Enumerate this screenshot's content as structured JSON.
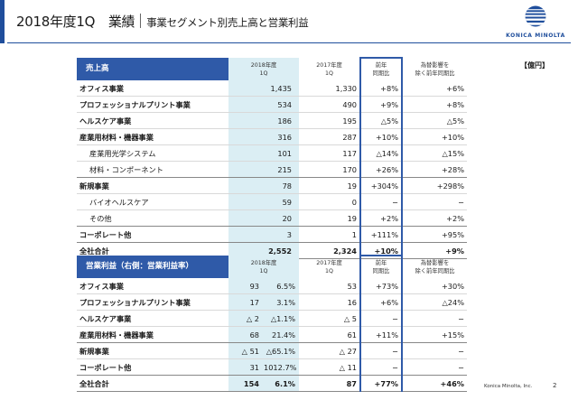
{
  "header": {
    "title_main": "2018年度1Q　業績",
    "title_sub": "事業セグメント別売上高と営業利益",
    "logo_text": "KONICA MINOLTA",
    "unit": "【億円】"
  },
  "footer": {
    "company": "Konica Minolta, Inc.",
    "page": "2"
  },
  "colors": {
    "accent": "#1f4e9c",
    "header_cell": "#2f5aa8",
    "fy2018_column": "#dbeef4"
  },
  "sales_table": {
    "label": "売上高",
    "col_2018_a": "2018年度",
    "col_2018_b": "1Q",
    "col_2017_a": "2017年度",
    "col_2017_b": "1Q",
    "col_yoy_a": "前年",
    "col_yoy_b": "同期比",
    "col_fx_a": "為替影響を",
    "col_fx_b": "除く前年同期比",
    "rows": [
      {
        "name": "オフィス事業",
        "v2018": "1,435",
        "v2017": "1,330",
        "yoy": "+8%",
        "fx": "+6%"
      },
      {
        "name": "プロフェッショナルプリント事業",
        "v2018": "534",
        "v2017": "490",
        "yoy": "+9%",
        "fx": "+8%"
      },
      {
        "name": "ヘルスケア事業",
        "v2018": "186",
        "v2017": "195",
        "yoy": "△5%",
        "fx": "△5%"
      },
      {
        "name": "産業用材料・機器事業",
        "v2018": "316",
        "v2017": "287",
        "yoy": "+10%",
        "fx": "+10%"
      },
      {
        "name": "産業用光学システム",
        "v2018": "101",
        "v2017": "117",
        "yoy": "△14%",
        "fx": "△15%"
      },
      {
        "name": "材料・コンポーネント",
        "v2018": "215",
        "v2017": "170",
        "yoy": "+26%",
        "fx": "+28%"
      },
      {
        "name": "新規事業",
        "v2018": "78",
        "v2017": "19",
        "yoy": "+304%",
        "fx": "+298%"
      },
      {
        "name": "バイオヘルスケア",
        "v2018": "59",
        "v2017": "0",
        "yoy": "−",
        "fx": "−"
      },
      {
        "name": "その他",
        "v2018": "20",
        "v2017": "19",
        "yoy": "+2%",
        "fx": "+2%"
      },
      {
        "name": "コーポレート他",
        "v2018": "3",
        "v2017": "1",
        "yoy": "+111%",
        "fx": "+95%"
      },
      {
        "name": "全社合計",
        "v2018": "2,552",
        "v2017": "2,324",
        "yoy": "+10%",
        "fx": "+9%"
      }
    ]
  },
  "profit_table": {
    "label": "営業利益（右側：営業利益率）",
    "col_2018_a": "2018年度",
    "col_2018_b": "1Q",
    "col_2017_a": "2017年度",
    "col_2017_b": "1Q",
    "col_yoy_a": "前年",
    "col_yoy_b": "同期比",
    "col_fx_a": "為替影響を",
    "col_fx_b": "除く前年同期比",
    "rows": [
      {
        "name": "オフィス事業",
        "v2018": "93",
        "margin": "6.5%",
        "v2017": "53",
        "yoy": "+73%",
        "fx": "+30%"
      },
      {
        "name": "プロフェッショナルプリント事業",
        "v2018": "17",
        "margin": "3.1%",
        "v2017": "16",
        "yoy": "+6%",
        "fx": "△24%"
      },
      {
        "name": "ヘルスケア事業",
        "v2018": "△ 2",
        "margin": "△1.1%",
        "v2017": "△ 5",
        "yoy": "−",
        "fx": "−"
      },
      {
        "name": "産業用材料・機器事業",
        "v2018": "68",
        "margin": "21.4%",
        "v2017": "61",
        "yoy": "+11%",
        "fx": "+15%"
      },
      {
        "name": "新規事業",
        "v2018": "△ 51",
        "margin": "△65.1%",
        "v2017": "△ 27",
        "yoy": "−",
        "fx": "−"
      },
      {
        "name": "コーポレート他",
        "v2018": "31",
        "margin": "1012.7%",
        "v2017": "△ 11",
        "yoy": "−",
        "fx": "−"
      },
      {
        "name": "全社合計",
        "v2018": "154",
        "margin": "6.1%",
        "v2017": "87",
        "yoy": "+77%",
        "fx": "+46%"
      }
    ]
  }
}
